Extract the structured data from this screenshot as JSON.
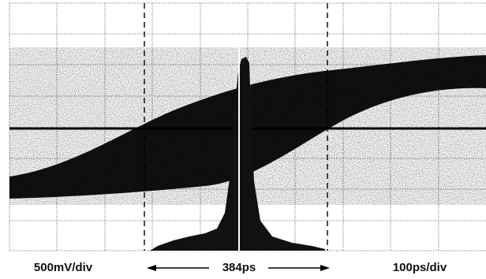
{
  "labels": {
    "vertical_scale": "500mV/div",
    "measurement": "384ps",
    "horizontal_scale": "100ps/div"
  }
}
